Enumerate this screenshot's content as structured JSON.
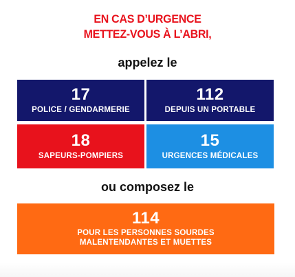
{
  "header": {
    "line1": "EN CAS D’URGENCE",
    "line2": "METTEZ-VOUS À L’ABRI,",
    "call_text": "appelez le"
  },
  "numbers": [
    {
      "number": "17",
      "label": "POLICE / GENDARMERIE",
      "color": "#13176b"
    },
    {
      "number": "112",
      "label": "DEPUIS UN PORTABLE",
      "color": "#13176b"
    },
    {
      "number": "18",
      "label": "SAPEURS-POMPIERS",
      "color": "#e8121c"
    },
    {
      "number": "15",
      "label": "URGENCES MÉDICALES",
      "color": "#1d8fe3"
    }
  ],
  "alternative": {
    "text": "ou composez le",
    "number": "114",
    "label_line1": "POUR LES PERSONNES SOURDES",
    "label_line2": "MALENTENDANTES ET MUETTES",
    "color": "#ff6a13"
  }
}
